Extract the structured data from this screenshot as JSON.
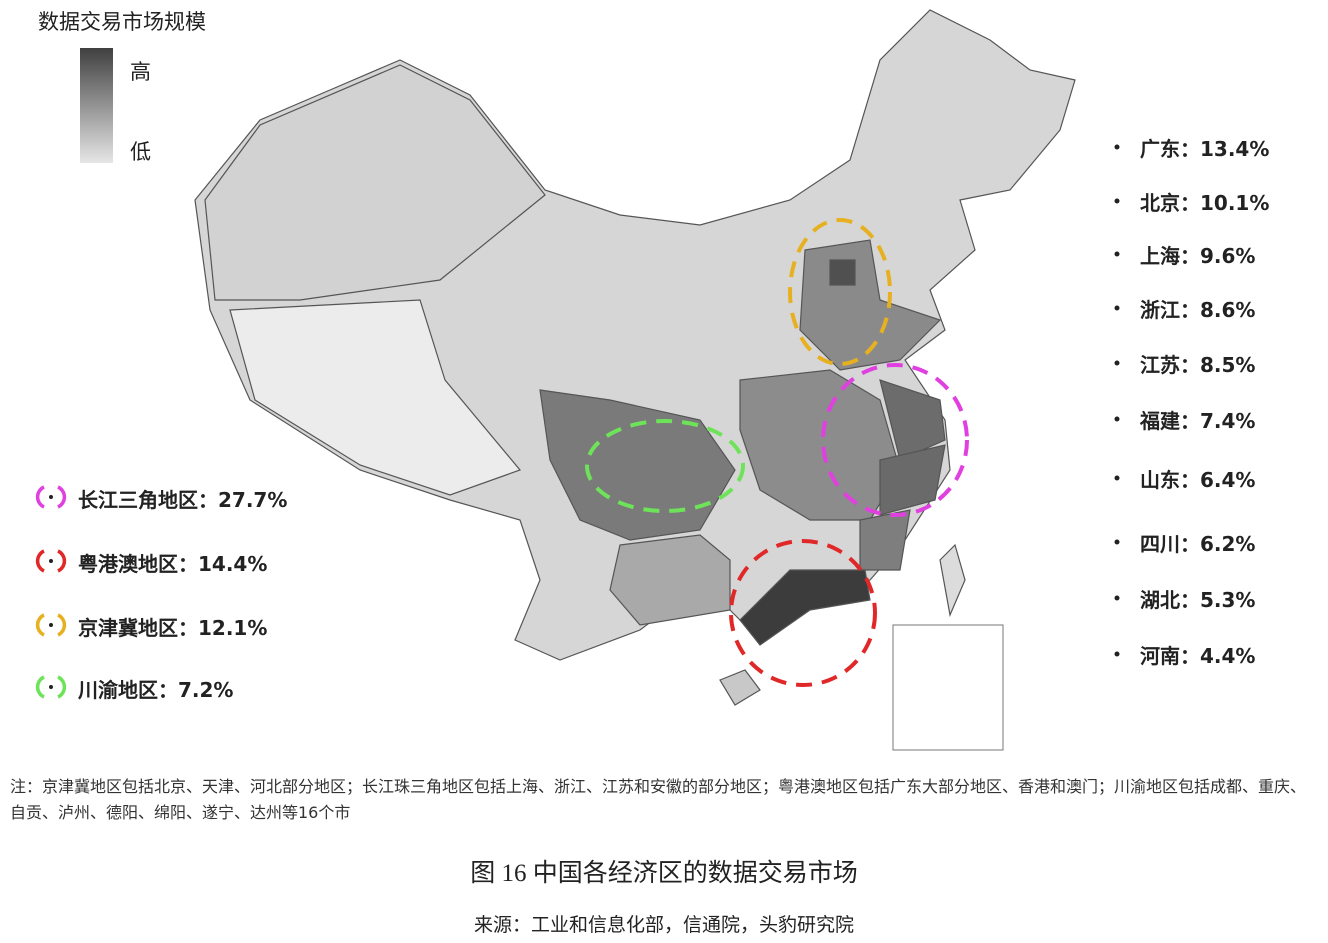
{
  "legend": {
    "title": "数据交易市场规模",
    "high": "高",
    "low": "低"
  },
  "provinces": [
    "广东：13.4%",
    "北京：10.1%",
    "上海：9.6%",
    "浙江：8.6%",
    "江苏：8.5%",
    "福建：7.4%",
    "山东：6.4%",
    "四川：6.2%",
    "湖北：5.3%",
    "河南：4.4%"
  ],
  "regions": [
    "长江三角地区：27.7%",
    "粤港澳地区：14.4%",
    "京津冀地区：12.1%",
    "川渝地区：7.2%"
  ],
  "note": "注：京津冀地区包括北京、天津、河北部分地区；长江珠三角地区包括上海、浙江、江苏和安徽的部分地区；粤港澳地区包括广东大部分地区、香港和澳门；川渝地区包括成都、重庆、自贡、泸州、德阳、绵阳、遂宁、达州等16个市",
  "caption": "图 16  中国各经济区的数据交易市场",
  "source": "来源：工业和信息化部，信通院，头豹研究院"
}
